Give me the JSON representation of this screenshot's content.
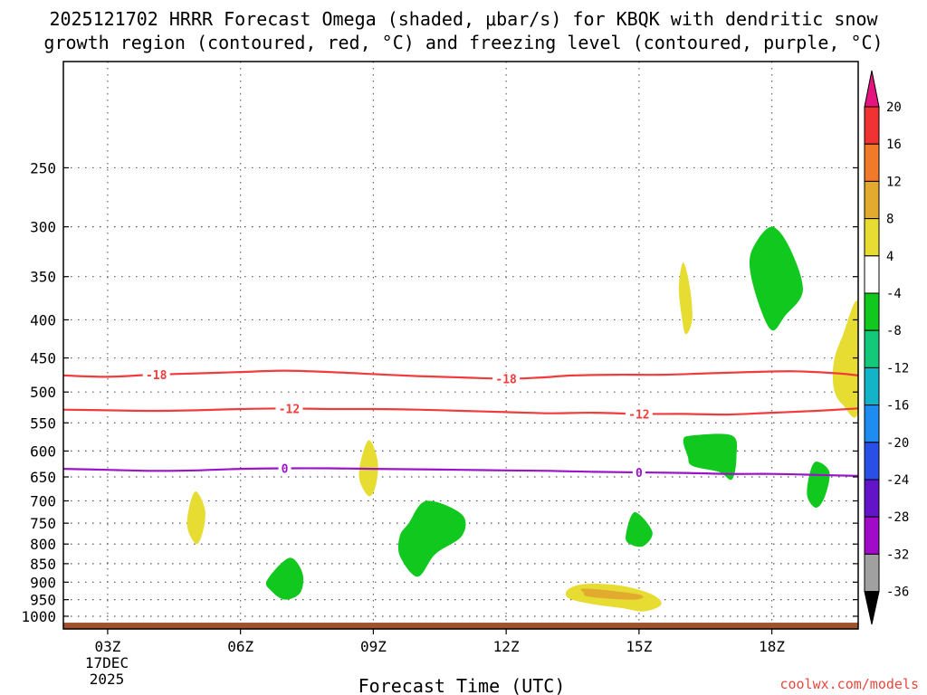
{
  "chart_data": {
    "type": "time-height cross section",
    "title_line1": "2025121702 HRRR Forecast Omega (shaded, μbar/s) for KBQK with dendritic snow",
    "title_line2": "growth region (contoured, red, °C) and freezing level (contoured, purple, °C)",
    "xlabel": "Forecast Time (UTC)",
    "credit": "coolwx.com/models",
    "x_ticks": [
      {
        "hour": 3,
        "label": "03Z"
      },
      {
        "hour": 6,
        "label": "06Z"
      },
      {
        "hour": 9,
        "label": "09Z"
      },
      {
        "hour": 12,
        "label": "12Z"
      },
      {
        "hour": 15,
        "label": "15Z"
      },
      {
        "hour": 18,
        "label": "18Z"
      }
    ],
    "date_label_line1": "17DEC",
    "date_label_line2": "2025",
    "xlim": [
      2,
      19.95
    ],
    "ylim": [
      1040,
      180
    ],
    "y_ticks": [
      250,
      300,
      350,
      400,
      450,
      500,
      550,
      600,
      650,
      700,
      750,
      800,
      850,
      900,
      950,
      1000
    ],
    "colorbar": {
      "labels": [
        "20",
        "16",
        "12",
        "8",
        "4",
        "-4",
        "-8",
        "-12",
        "-16",
        "-20",
        "-24",
        "-28",
        "-32",
        "-36"
      ],
      "over_color": "#e6147e",
      "under_color": "#000000",
      "colors": [
        "#f03232",
        "#f07a2a",
        "#e2aa2e",
        "#e6dc32",
        "#ffffff",
        "#10c81e",
        "#14c87a",
        "#14b4c8",
        "#1e8cf0",
        "#2850e6",
        "#6414c8",
        "#a00ac8",
        "#a0a0a0"
      ]
    },
    "contours": [
      {
        "name": "dendritic-top",
        "level": "-18",
        "color": "#f03c3c",
        "width": 2.2,
        "points": [
          [
            2,
            475
          ],
          [
            3,
            477
          ],
          [
            4,
            474
          ],
          [
            5,
            472
          ],
          [
            6,
            470
          ],
          [
            7,
            468
          ],
          [
            8,
            470
          ],
          [
            9,
            473
          ],
          [
            10,
            476
          ],
          [
            11,
            478
          ],
          [
            12,
            480
          ],
          [
            12.8,
            478
          ],
          [
            13.5,
            475
          ],
          [
            14.5,
            474
          ],
          [
            15.5,
            474
          ],
          [
            16.5,
            472
          ],
          [
            17.5,
            470
          ],
          [
            18.5,
            469
          ],
          [
            19.5,
            472
          ],
          [
            19.95,
            475
          ]
        ],
        "labels": [
          [
            4.1,
            "-18"
          ],
          [
            12,
            "-18"
          ]
        ]
      },
      {
        "name": "dendritic-bottom",
        "level": "-12",
        "color": "#f03c3c",
        "width": 2.2,
        "points": [
          [
            2,
            528
          ],
          [
            3,
            529
          ],
          [
            4,
            530
          ],
          [
            5,
            529
          ],
          [
            6,
            527
          ],
          [
            7,
            526
          ],
          [
            8,
            527
          ],
          [
            9,
            527
          ],
          [
            10,
            528
          ],
          [
            11,
            530
          ],
          [
            12,
            532
          ],
          [
            13,
            534
          ],
          [
            14,
            533
          ],
          [
            15,
            535
          ],
          [
            16,
            535
          ],
          [
            17,
            536
          ],
          [
            18,
            533
          ],
          [
            19,
            530
          ],
          [
            19.95,
            526
          ]
        ],
        "labels": [
          [
            7.1,
            "-12"
          ],
          [
            15,
            "-12"
          ]
        ]
      },
      {
        "name": "freezing-level",
        "level": "0",
        "color": "#9a14c8",
        "width": 2.2,
        "points": [
          [
            2,
            634
          ],
          [
            3,
            636
          ],
          [
            4,
            638
          ],
          [
            5,
            637
          ],
          [
            6,
            634
          ],
          [
            7,
            633
          ],
          [
            8,
            633
          ],
          [
            9,
            634
          ],
          [
            10,
            635
          ],
          [
            11,
            636
          ],
          [
            12,
            637
          ],
          [
            13,
            638
          ],
          [
            14,
            640
          ],
          [
            15,
            641
          ],
          [
            16,
            642
          ],
          [
            17,
            644
          ],
          [
            18,
            644
          ],
          [
            19,
            646
          ],
          [
            19.95,
            648
          ]
        ],
        "labels": [
          [
            7,
            "0"
          ],
          [
            15,
            "0"
          ]
        ]
      }
    ],
    "omega_regions": [
      {
        "value": "-4 to -8",
        "color": "#10c81e",
        "points": [
          [
            18,
            300
          ],
          [
            18.4,
            320
          ],
          [
            18.7,
            365
          ],
          [
            18.3,
            395
          ],
          [
            18,
            413
          ],
          [
            17.7,
            380
          ],
          [
            17.5,
            340
          ],
          [
            17.6,
            318
          ]
        ]
      },
      {
        "value": "4 to 8",
        "color": "#e6dc32",
        "points": [
          [
            16,
            335
          ],
          [
            16.15,
            362
          ],
          [
            16.2,
            400
          ],
          [
            16.05,
            418
          ],
          [
            15.95,
            390
          ],
          [
            15.9,
            360
          ]
        ]
      },
      {
        "value": "4 to 8",
        "color": "#e6dc32",
        "points": [
          [
            19.95,
            380
          ],
          [
            19.6,
            420
          ],
          [
            19.4,
            455
          ],
          [
            19.4,
            495
          ],
          [
            19.6,
            520
          ],
          [
            19.95,
            530
          ]
        ]
      },
      {
        "value": "-4 to -8",
        "color": "#10c81e",
        "points": [
          [
            16,
            580
          ],
          [
            16.2,
            572
          ],
          [
            17.1,
            572
          ],
          [
            17.2,
            610
          ],
          [
            17.1,
            655
          ],
          [
            16.8,
            640
          ],
          [
            16.2,
            628
          ],
          [
            16.1,
            610
          ]
        ]
      },
      {
        "value": "-4 to -8",
        "color": "#10c81e",
        "points": [
          [
            19,
            620
          ],
          [
            19.3,
            640
          ],
          [
            19.2,
            690
          ],
          [
            19,
            715
          ],
          [
            18.8,
            690
          ],
          [
            18.85,
            645
          ]
        ]
      },
      {
        "value": "4 to 8",
        "color": "#e6dc32",
        "points": [
          [
            8.9,
            580
          ],
          [
            9.1,
            620
          ],
          [
            9.05,
            670
          ],
          [
            8.9,
            690
          ],
          [
            8.7,
            660
          ],
          [
            8.7,
            625
          ]
        ]
      },
      {
        "value": "4 to 8",
        "color": "#e6dc32",
        "points": [
          [
            5,
            680
          ],
          [
            5.2,
            720
          ],
          [
            5.15,
            770
          ],
          [
            5,
            800
          ],
          [
            4.8,
            760
          ],
          [
            4.85,
            710
          ]
        ]
      },
      {
        "value": "-4 to -8",
        "color": "#10c81e",
        "points": [
          [
            10.2,
            700
          ],
          [
            11,
            730
          ],
          [
            11,
            780
          ],
          [
            10.4,
            825
          ],
          [
            10,
            885
          ],
          [
            9.6,
            830
          ],
          [
            9.6,
            780
          ],
          [
            9.8,
            750
          ]
        ]
      },
      {
        "value": "-4 to -8",
        "color": "#10c81e",
        "points": [
          [
            14.9,
            725
          ],
          [
            15.3,
            770
          ],
          [
            15.1,
            805
          ],
          [
            14.8,
            800
          ],
          [
            14.7,
            780
          ]
        ]
      },
      {
        "value": "-4 to -8",
        "color": "#10c81e",
        "points": [
          [
            7.1,
            835
          ],
          [
            7.4,
            875
          ],
          [
            7.35,
            930
          ],
          [
            7,
            950
          ],
          [
            6.7,
            925
          ],
          [
            6.6,
            895
          ]
        ]
      },
      {
        "value": "4 to 8",
        "color": "#e6dc32",
        "points": [
          [
            13.8,
            905
          ],
          [
            14.6,
            910
          ],
          [
            15.3,
            935
          ],
          [
            15.5,
            965
          ],
          [
            15.1,
            985
          ],
          [
            14.6,
            975
          ],
          [
            13.9,
            962
          ],
          [
            13.4,
            945
          ],
          [
            13.4,
            920
          ]
        ]
      },
      {
        "value": "8 to 12",
        "color": "#e2aa2e",
        "points": [
          [
            13.8,
            918
          ],
          [
            15,
            935
          ],
          [
            14.9,
            950
          ],
          [
            13.9,
            942
          ],
          [
            13.75,
            930
          ]
        ]
      }
    ],
    "ground_color": "#a0522d",
    "ground_pressure": 1020
  }
}
